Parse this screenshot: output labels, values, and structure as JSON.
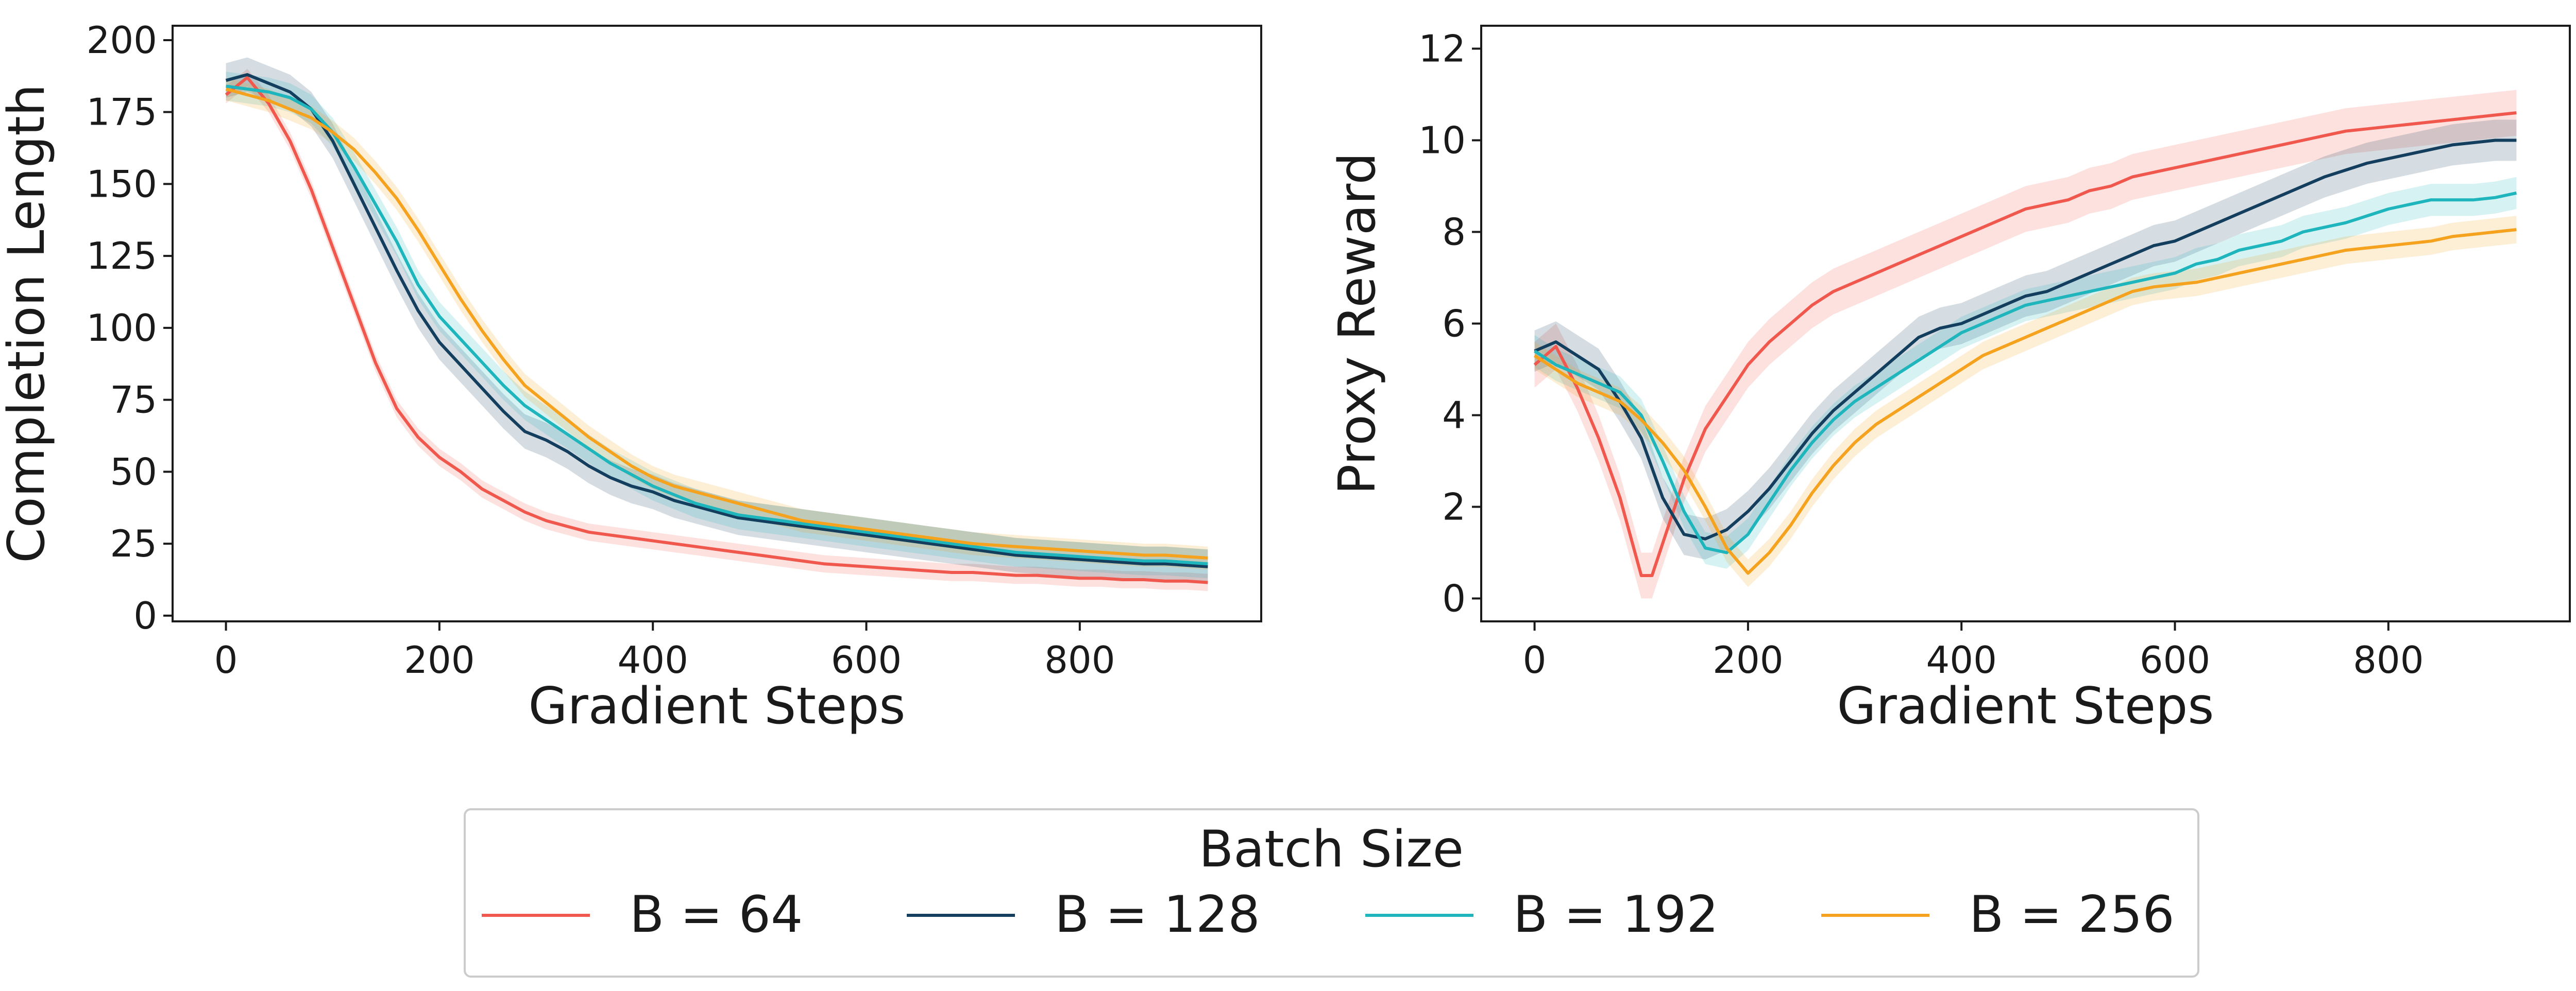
{
  "colors": {
    "b64": "#f0584d",
    "b128": "#143e5e",
    "b192": "#1fb5bd",
    "b256": "#f5a21e",
    "axis": "#1a1a1a"
  },
  "legend": {
    "title": "Batch Size",
    "entries": [
      {
        "label": "B = 64",
        "color_key": "b64"
      },
      {
        "label": "B = 128",
        "color_key": "b128"
      },
      {
        "label": "B = 192",
        "color_key": "b192"
      },
      {
        "label": "B = 256",
        "color_key": "b256"
      }
    ]
  },
  "chart_data": [
    {
      "type": "line",
      "title": "",
      "xlabel": "Gradient Steps",
      "ylabel": "Completion Length",
      "xlim": [
        -50,
        970
      ],
      "ylim": [
        -2,
        205
      ],
      "xticks": [
        0,
        200,
        400,
        600,
        800
      ],
      "yticks": [
        0,
        25,
        50,
        75,
        100,
        125,
        150,
        175,
        200
      ],
      "series": [
        {
          "name": "B = 64",
          "color_key": "b64",
          "x": [
            0,
            20,
            40,
            60,
            80,
            100,
            120,
            140,
            160,
            180,
            200,
            220,
            240,
            260,
            280,
            300,
            320,
            340,
            360,
            380,
            400,
            420,
            440,
            460,
            480,
            500,
            520,
            540,
            560,
            580,
            600,
            620,
            640,
            660,
            680,
            700,
            720,
            740,
            760,
            780,
            800,
            820,
            840,
            860,
            880,
            900,
            920
          ],
          "y": [
            181,
            187,
            178,
            165,
            148,
            128,
            108,
            88,
            72,
            62,
            55,
            50,
            44,
            40,
            36,
            33,
            31,
            29,
            28,
            27,
            26,
            25,
            24,
            23,
            22,
            21,
            20,
            19,
            18,
            17.5,
            17,
            16.5,
            16,
            15.5,
            15,
            15,
            14.5,
            14,
            14,
            13.5,
            13,
            13,
            12.5,
            12.5,
            12,
            12,
            11.5
          ],
          "band": 3
        },
        {
          "name": "B = 128",
          "color_key": "b128",
          "x": [
            0,
            20,
            40,
            60,
            80,
            100,
            120,
            140,
            160,
            180,
            200,
            220,
            240,
            260,
            280,
            300,
            320,
            340,
            360,
            380,
            400,
            420,
            440,
            460,
            480,
            500,
            520,
            540,
            560,
            580,
            600,
            620,
            640,
            660,
            680,
            700,
            720,
            740,
            760,
            780,
            800,
            820,
            840,
            860,
            880,
            900,
            920
          ],
          "y": [
            186,
            188,
            185,
            182,
            176,
            165,
            150,
            135,
            120,
            106,
            95,
            87,
            79,
            71,
            64,
            61,
            57,
            52,
            48,
            45,
            43,
            40,
            38,
            36,
            34,
            33,
            32,
            31,
            30,
            29,
            28,
            27,
            26,
            25,
            24,
            23,
            22,
            21,
            20.5,
            20,
            19.5,
            19,
            18.5,
            18,
            18,
            17.5,
            17
          ],
          "band": 6
        },
        {
          "name": "B = 192",
          "color_key": "b192",
          "x": [
            0,
            20,
            40,
            60,
            80,
            100,
            120,
            140,
            160,
            180,
            200,
            220,
            240,
            260,
            280,
            300,
            320,
            340,
            360,
            380,
            400,
            420,
            440,
            460,
            480,
            500,
            520,
            540,
            560,
            580,
            600,
            620,
            640,
            660,
            680,
            700,
            720,
            740,
            760,
            780,
            800,
            820,
            840,
            860,
            880,
            900,
            920
          ],
          "y": [
            184,
            183,
            182,
            180,
            176,
            168,
            156,
            143,
            130,
            115,
            104,
            96,
            88,
            80,
            73,
            68,
            63,
            58,
            53,
            49,
            45,
            42,
            39,
            37,
            35,
            34,
            33,
            32,
            31,
            30,
            29,
            28,
            27,
            26,
            25,
            24,
            23,
            22,
            21.5,
            21,
            20.5,
            20,
            19.5,
            19,
            19,
            18.5,
            18
          ],
          "band": 5
        },
        {
          "name": "B = 256",
          "color_key": "b256",
          "x": [
            0,
            20,
            40,
            60,
            80,
            100,
            120,
            140,
            160,
            180,
            200,
            220,
            240,
            260,
            280,
            300,
            320,
            340,
            360,
            380,
            400,
            420,
            440,
            460,
            480,
            500,
            520,
            540,
            560,
            580,
            600,
            620,
            640,
            660,
            680,
            700,
            720,
            740,
            760,
            780,
            800,
            820,
            840,
            860,
            880,
            900,
            920
          ],
          "y": [
            183,
            181,
            179,
            176,
            173,
            168,
            162,
            154,
            145,
            134,
            122,
            110,
            99,
            89,
            80,
            74,
            68,
            62,
            57,
            52,
            48,
            45,
            43,
            41,
            39,
            37,
            35,
            33,
            32,
            31,
            30,
            29,
            28,
            27,
            26,
            25,
            24.5,
            24,
            23.5,
            23,
            22.5,
            22,
            21.5,
            21,
            21,
            20.5,
            20
          ],
          "band": 4
        }
      ]
    },
    {
      "type": "line",
      "title": "",
      "xlabel": "Gradient Steps",
      "ylabel": "Proxy Reward",
      "xlim": [
        -50,
        970
      ],
      "ylim": [
        -0.5,
        12.5
      ],
      "xticks": [
        0,
        200,
        400,
        600,
        800
      ],
      "yticks": [
        0,
        2,
        4,
        6,
        8,
        10,
        12
      ],
      "series": [
        {
          "name": "B = 64",
          "color_key": "b64",
          "x": [
            0,
            20,
            40,
            60,
            80,
            100,
            110,
            120,
            140,
            160,
            180,
            200,
            220,
            240,
            260,
            280,
            300,
            320,
            340,
            360,
            380,
            400,
            420,
            440,
            460,
            480,
            500,
            520,
            540,
            560,
            580,
            600,
            620,
            640,
            660,
            680,
            700,
            720,
            740,
            760,
            780,
            800,
            820,
            840,
            860,
            880,
            900,
            920
          ],
          "y": [
            5.1,
            5.5,
            4.6,
            3.5,
            2.2,
            0.5,
            0.5,
            1.2,
            2.6,
            3.7,
            4.4,
            5.1,
            5.6,
            6.0,
            6.4,
            6.7,
            6.9,
            7.1,
            7.3,
            7.5,
            7.7,
            7.9,
            8.1,
            8.3,
            8.5,
            8.6,
            8.7,
            8.9,
            9.0,
            9.2,
            9.3,
            9.4,
            9.5,
            9.6,
            9.7,
            9.8,
            9.9,
            10.0,
            10.1,
            10.2,
            10.25,
            10.3,
            10.35,
            10.4,
            10.45,
            10.5,
            10.55,
            10.6
          ],
          "band": 0.5
        },
        {
          "name": "B = 128",
          "color_key": "b128",
          "x": [
            0,
            20,
            40,
            60,
            80,
            100,
            120,
            140,
            160,
            180,
            200,
            220,
            240,
            260,
            280,
            300,
            320,
            340,
            360,
            380,
            400,
            420,
            440,
            460,
            480,
            500,
            520,
            540,
            560,
            580,
            600,
            620,
            640,
            660,
            680,
            700,
            720,
            740,
            760,
            780,
            800,
            820,
            840,
            860,
            880,
            900,
            920
          ],
          "y": [
            5.4,
            5.6,
            5.3,
            5.0,
            4.3,
            3.5,
            2.2,
            1.4,
            1.3,
            1.5,
            1.9,
            2.4,
            3.0,
            3.6,
            4.1,
            4.5,
            4.9,
            5.3,
            5.7,
            5.9,
            6.0,
            6.2,
            6.4,
            6.6,
            6.7,
            6.9,
            7.1,
            7.3,
            7.5,
            7.7,
            7.8,
            8.0,
            8.2,
            8.4,
            8.6,
            8.8,
            9.0,
            9.2,
            9.35,
            9.5,
            9.6,
            9.7,
            9.8,
            9.9,
            9.95,
            10.0,
            10.0
          ],
          "band": 0.45
        },
        {
          "name": "B = 192",
          "color_key": "b192",
          "x": [
            0,
            20,
            40,
            60,
            80,
            100,
            120,
            140,
            160,
            180,
            200,
            220,
            240,
            260,
            280,
            300,
            320,
            340,
            360,
            380,
            400,
            420,
            440,
            460,
            480,
            500,
            520,
            540,
            560,
            580,
            600,
            620,
            640,
            660,
            680,
            700,
            720,
            740,
            760,
            780,
            800,
            820,
            840,
            860,
            880,
            900,
            920
          ],
          "y": [
            5.4,
            5.1,
            4.9,
            4.7,
            4.5,
            4.0,
            3.0,
            1.9,
            1.1,
            1.0,
            1.4,
            2.1,
            2.8,
            3.4,
            3.9,
            4.3,
            4.6,
            4.9,
            5.2,
            5.5,
            5.8,
            6.0,
            6.2,
            6.4,
            6.5,
            6.6,
            6.7,
            6.8,
            6.9,
            7.0,
            7.1,
            7.3,
            7.4,
            7.6,
            7.7,
            7.8,
            8.0,
            8.1,
            8.2,
            8.35,
            8.5,
            8.6,
            8.7,
            8.7,
            8.7,
            8.75,
            8.85
          ],
          "band": 0.35
        },
        {
          "name": "B = 256",
          "color_key": "b256",
          "x": [
            0,
            20,
            40,
            60,
            80,
            100,
            120,
            140,
            160,
            180,
            200,
            220,
            240,
            260,
            280,
            300,
            320,
            340,
            360,
            380,
            400,
            420,
            440,
            460,
            480,
            500,
            520,
            540,
            560,
            580,
            600,
            620,
            640,
            660,
            680,
            700,
            720,
            740,
            760,
            780,
            800,
            820,
            840,
            860,
            880,
            900,
            920
          ],
          "y": [
            5.3,
            5.0,
            4.7,
            4.5,
            4.3,
            3.9,
            3.4,
            2.8,
            2.0,
            1.1,
            0.55,
            1.0,
            1.6,
            2.3,
            2.9,
            3.4,
            3.8,
            4.1,
            4.4,
            4.7,
            5.0,
            5.3,
            5.5,
            5.7,
            5.9,
            6.1,
            6.3,
            6.5,
            6.7,
            6.8,
            6.85,
            6.9,
            7.0,
            7.1,
            7.2,
            7.3,
            7.4,
            7.5,
            7.6,
            7.65,
            7.7,
            7.75,
            7.8,
            7.9,
            7.95,
            8.0,
            8.05
          ],
          "band": 0.3
        }
      ]
    }
  ]
}
